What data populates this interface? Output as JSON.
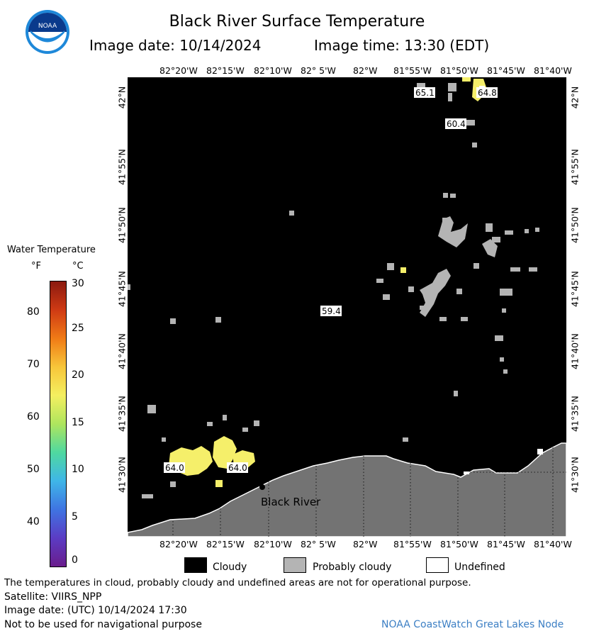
{
  "header": {
    "title": "Black River Surface Temperature",
    "image_date": "Image date: 10/14/2024",
    "image_time": "Image time: 13:30 (EDT)"
  },
  "map": {
    "lon_labels": [
      "82°20'W",
      "82°15'W",
      "82°10'W",
      "82° 5'W",
      "82°W",
      "81°55'W",
      "81°50'W",
      "81°45'W",
      "81°40'W"
    ],
    "lat_labels": [
      "42°N",
      "41°55'N",
      "41°50'N",
      "41°45'N",
      "41°40'N",
      "41°35'N",
      "41°30'N"
    ],
    "temperature_labels": [
      "65.1",
      "64.8",
      "60.4",
      "59.4",
      "64.0",
      "64.0"
    ],
    "place_label": "Black River",
    "colors": {
      "land": "#737373",
      "cloud": "#000000",
      "probably_cloudy": "#b4b4b4",
      "warm_water": "#f5ef6a"
    }
  },
  "colorbar": {
    "title": "Water Temperature",
    "f_label": "°F",
    "c_label": "°C",
    "f_ticks": [
      "80",
      "70",
      "60",
      "50",
      "40"
    ],
    "c_ticks": [
      "30",
      "25",
      "20",
      "15",
      "10",
      "5",
      "0"
    ]
  },
  "key": {
    "cloudy": "Cloudy",
    "probably_cloudy": "Probably cloudy",
    "undefined": "Undefined"
  },
  "footer": {
    "disclaimer": "The temperatures in cloud, probably cloudy and undefined areas are not for operational purpose.",
    "satellite": "Satellite: VIIRS_NPP",
    "utc_date": "Image date: (UTC) 10/14/2024   17:30",
    "navigation": "Not to be used for navigational purpose",
    "credit": "NOAA CoastWatch Great Lakes Node"
  },
  "logo": {
    "text": "NOAA"
  }
}
